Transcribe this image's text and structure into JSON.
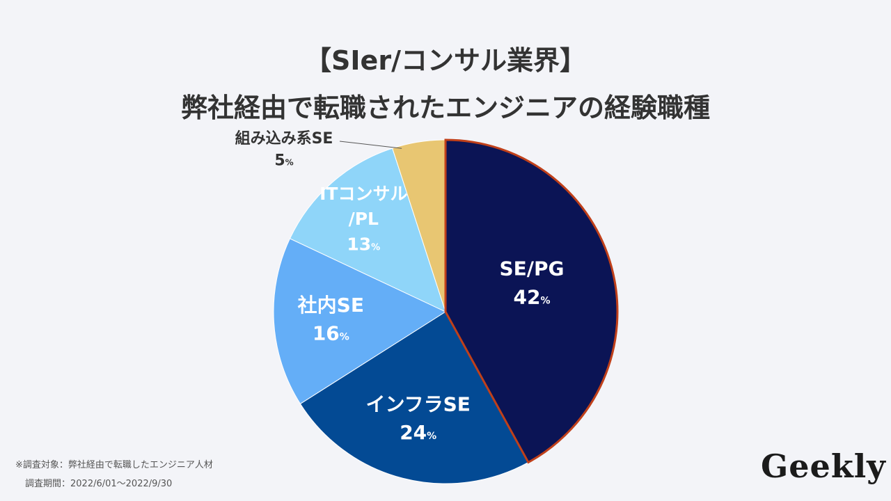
{
  "title": {
    "line1": "【SIer/コンサル業界】",
    "line2": "弊社経由で転職されたエンジニアの経験職種"
  },
  "chart_data": {
    "type": "pie",
    "title": "【SIer/コンサル業界】 弊社経由で転職されたエンジニアの経験職種",
    "unit": "%",
    "start": "12 o'clock, clockwise",
    "slices": [
      {
        "label": "SE/PG",
        "value": 42,
        "color": "#0b1455",
        "highlight_border": "#c0401a",
        "label_color": "#ffffff"
      },
      {
        "label": "インフラSE",
        "value": 24,
        "color": "#034a94",
        "label_color": "#ffffff"
      },
      {
        "label": "社内SE",
        "value": 16,
        "color": "#64aef7",
        "label_color": "#ffffff"
      },
      {
        "label": "ITコンサル/PL",
        "label_lines": [
          "ITコンサル",
          "/PL"
        ],
        "value": 13,
        "color": "#8fd5f9",
        "label_color": "#ffffff"
      },
      {
        "label": "組み込み系SE",
        "value": 5,
        "color": "#e8c672",
        "label_color": "#333333",
        "label_outside": true
      }
    ]
  },
  "footnote": {
    "line1": "※調査対象：弊社経由で転職したエンジニア人材",
    "line2": "調査期間：2022/6/01〜2022/9/30"
  },
  "logo": {
    "text": "Geekly"
  }
}
